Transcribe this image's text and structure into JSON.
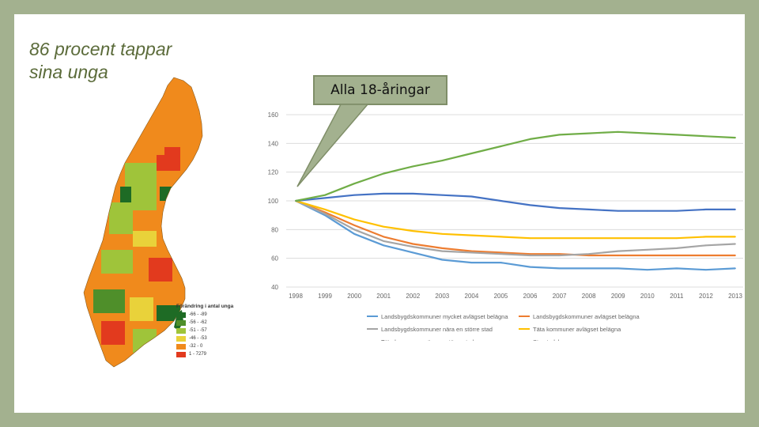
{
  "slide": {
    "title_line1": "86 procent tappar",
    "title_line2": "sina unga",
    "callout": "Alla 18-åringar"
  },
  "map": {
    "legend_title": "Förändring i antal unga",
    "legend": [
      {
        "label": "-66 - -89",
        "color": "#1e6b25"
      },
      {
        "label": "-56 - -62",
        "color": "#4f8f2a"
      },
      {
        "label": "-51 - -57",
        "color": "#9fc43a"
      },
      {
        "label": "-46 - -53",
        "color": "#e9d23a"
      },
      {
        "label": "-32 - 0",
        "color": "#f08a1c"
      },
      {
        "label": "1 - 7279",
        "color": "#e23a1e"
      }
    ]
  },
  "chart_data": {
    "type": "line",
    "x": [
      1998,
      1999,
      2000,
      2001,
      2002,
      2003,
      2004,
      2005,
      2006,
      2007,
      2008,
      2009,
      2010,
      2011,
      2012,
      2013
    ],
    "ylim": [
      40,
      160
    ],
    "yticks": [
      40,
      60,
      80,
      100,
      120,
      140,
      160
    ],
    "grid": true,
    "legend_position": "bottom",
    "series": [
      {
        "name": "Landsbygdskommuner mycket avlägset belägna",
        "color": "#5b9bd5",
        "values": [
          100,
          90,
          77,
          69,
          64,
          59,
          57,
          57,
          54,
          53,
          53,
          53,
          52,
          53,
          52,
          53
        ]
      },
      {
        "name": "Landsbygdskommuner avlägset belägna",
        "color": "#ed7d31",
        "values": [
          100,
          92,
          83,
          75,
          70,
          67,
          65,
          64,
          63,
          63,
          62,
          62,
          62,
          62,
          62,
          62
        ]
      },
      {
        "name": "Landsbygdskommuner nära en större stad",
        "color": "#a5a5a5",
        "values": [
          100,
          91,
          80,
          72,
          68,
          65,
          64,
          63,
          62,
          62,
          63,
          65,
          66,
          67,
          69,
          70
        ]
      },
      {
        "name": "Täta kommuner avlägset belägna",
        "color": "#ffc000",
        "values": [
          100,
          94,
          87,
          82,
          79,
          77,
          76,
          75,
          74,
          74,
          74,
          74,
          74,
          74,
          75,
          75
        ]
      },
      {
        "name": "Täta kommuner nära en större stad",
        "color": "#4472c4",
        "values": [
          100,
          102,
          104,
          105,
          105,
          104,
          103,
          100,
          97,
          95,
          94,
          93,
          93,
          93,
          94,
          94
        ]
      },
      {
        "name": "Storstadskommuner",
        "color": "#70ad47",
        "values": [
          100,
          104,
          112,
          119,
          124,
          128,
          133,
          138,
          143,
          146,
          147,
          148,
          147,
          146,
          145,
          144
        ]
      }
    ]
  }
}
